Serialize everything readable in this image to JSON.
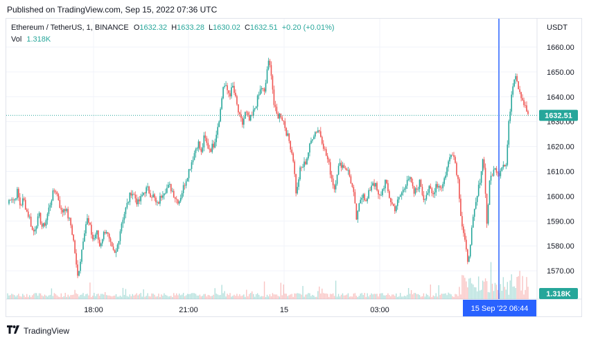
{
  "published": "Published on TradingView.com, Sep 15, 2022 07:36 UTC",
  "legend": {
    "symbol": "Ethereum / TetherUS, 1, BINANCE",
    "o_label": "O",
    "o": "1632.32",
    "h_label": "H",
    "h": "1633.28",
    "l_label": "L",
    "l": "1630.02",
    "c_label": "C",
    "c": "1632.51",
    "change": "+0.20 (+0.01%)",
    "vol_label": "Vol",
    "vol": "1.318K"
  },
  "footer": {
    "brand": "TradingView"
  },
  "colors": {
    "up": "#26a69a",
    "down": "#ef5350",
    "crosshair": "#2962ff",
    "grid": "#f0f3fa"
  },
  "chart_data": {
    "type": "candlestick",
    "currency": "USDT",
    "ylim": [
      1560,
      1665
    ],
    "y_ticks": [
      "1660.00",
      "1650.00",
      "1640.00",
      "1630.00",
      "1620.00",
      "1610.00",
      "1600.00",
      "1590.00",
      "1580.00",
      "1570.00"
    ],
    "x_ticks": [
      "18:00",
      "21:00",
      "15",
      "03:00"
    ],
    "last_price": "1632.51",
    "volume_last": "1.318K",
    "crosshair_label": "15 Sep '22   06:44",
    "price_path": [
      1597,
      1600,
      1598,
      1602,
      1596,
      1599,
      1594,
      1591,
      1585,
      1589,
      1592,
      1587,
      1590,
      1595,
      1600,
      1603,
      1599,
      1593,
      1596,
      1592,
      1588,
      1580,
      1567,
      1575,
      1585,
      1591,
      1587,
      1582,
      1586,
      1580,
      1584,
      1587,
      1582,
      1578,
      1576,
      1583,
      1590,
      1594,
      1598,
      1602,
      1600,
      1597,
      1599,
      1602,
      1603,
      1601,
      1600,
      1596,
      1599,
      1602,
      1603,
      1604,
      1602,
      1599,
      1598,
      1602,
      1606,
      1610,
      1614,
      1618,
      1622,
      1617,
      1624,
      1620,
      1619,
      1621,
      1627,
      1634,
      1645,
      1643,
      1641,
      1644,
      1638,
      1632,
      1629,
      1634,
      1630,
      1632,
      1636,
      1640,
      1644,
      1641,
      1654,
      1651,
      1636,
      1632,
      1633,
      1630,
      1625,
      1621,
      1615,
      1600,
      1610,
      1612,
      1614,
      1619,
      1624,
      1626,
      1627,
      1623,
      1618,
      1614,
      1608,
      1603,
      1611,
      1613,
      1612,
      1611,
      1607,
      1601,
      1590,
      1598,
      1602,
      1597,
      1602,
      1606,
      1604,
      1599,
      1602,
      1606,
      1601,
      1597,
      1595,
      1598,
      1601,
      1603,
      1608,
      1606,
      1601,
      1603,
      1606,
      1599,
      1601,
      1603,
      1600,
      1605,
      1604,
      1604,
      1609,
      1614,
      1619,
      1614,
      1606,
      1590,
      1583,
      1572,
      1584,
      1593,
      1600,
      1608,
      1617,
      1589,
      1607,
      1610,
      1611,
      1609,
      1614,
      1611,
      1630,
      1644,
      1650,
      1644,
      1640,
      1636,
      1633
    ]
  }
}
